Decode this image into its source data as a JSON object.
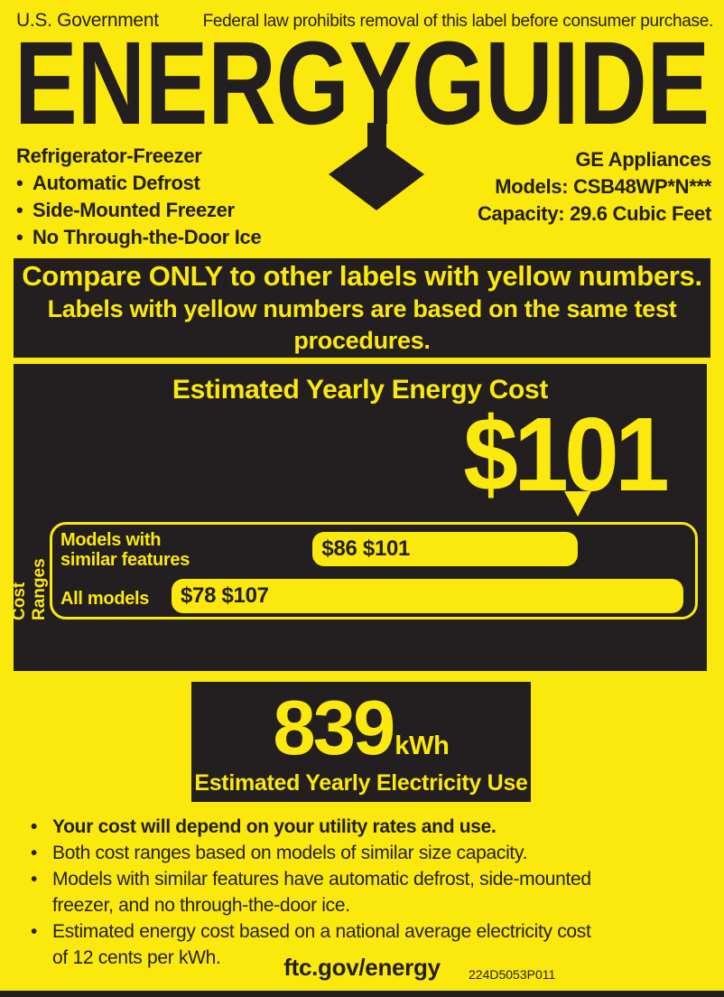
{
  "colors": {
    "yellow": "#fbe80d",
    "black": "#231f20"
  },
  "header": {
    "agency": "U.S. Government",
    "notice": "Federal law prohibits removal of this label before consumer purchase."
  },
  "logo": {
    "text": "ENERGYGUIDE",
    "arrow_icon": "down-arrow"
  },
  "product": {
    "category": "Refrigerator-Freezer",
    "features": [
      "Automatic Defrost",
      "Side-Mounted Freezer",
      "No Through-the-Door Ice"
    ]
  },
  "manufacturer": {
    "name": "GE Appliances",
    "models": "Models: CSB48WP*N***",
    "capacity": "Capacity: 29.6 Cubic Feet"
  },
  "compare_banner": {
    "line1": "Compare ONLY to other labels with yellow numbers.",
    "line2": "Labels with yellow numbers are based on the same test procedures."
  },
  "cost_panel": {
    "title": "Estimated Yearly Energy Cost",
    "value": "$101",
    "pointer_value": 101,
    "axis_label": "Cost Ranges",
    "axis": {
      "min": 78,
      "max": 107
    },
    "ranges": [
      {
        "label_line1": "Models with",
        "label_line2": "similar features",
        "range_text": "$86 $101",
        "min": 86,
        "max": 101
      },
      {
        "label_line1": "All models",
        "range_text": "$78 $107",
        "min": 78,
        "max": 107
      }
    ]
  },
  "usage_panel": {
    "value": "839",
    "unit": "kWh",
    "caption": "Estimated Yearly Electricity Use"
  },
  "notes": [
    {
      "bold": true,
      "lines": [
        "Your cost will depend on your utility rates and use."
      ]
    },
    {
      "bold": false,
      "lines": [
        "Both cost ranges based on models of similar size capacity."
      ]
    },
    {
      "bold": false,
      "lines": [
        "Models with similar features have automatic defrost, side-mounted",
        "freezer, and no through-the-door ice."
      ]
    },
    {
      "bold": false,
      "lines": [
        "Estimated energy cost based on a national average electricity cost",
        "of 12 cents per kWh."
      ]
    }
  ],
  "footer": {
    "url": "ftc.gov/energy",
    "part_number": "224D5053P011"
  }
}
